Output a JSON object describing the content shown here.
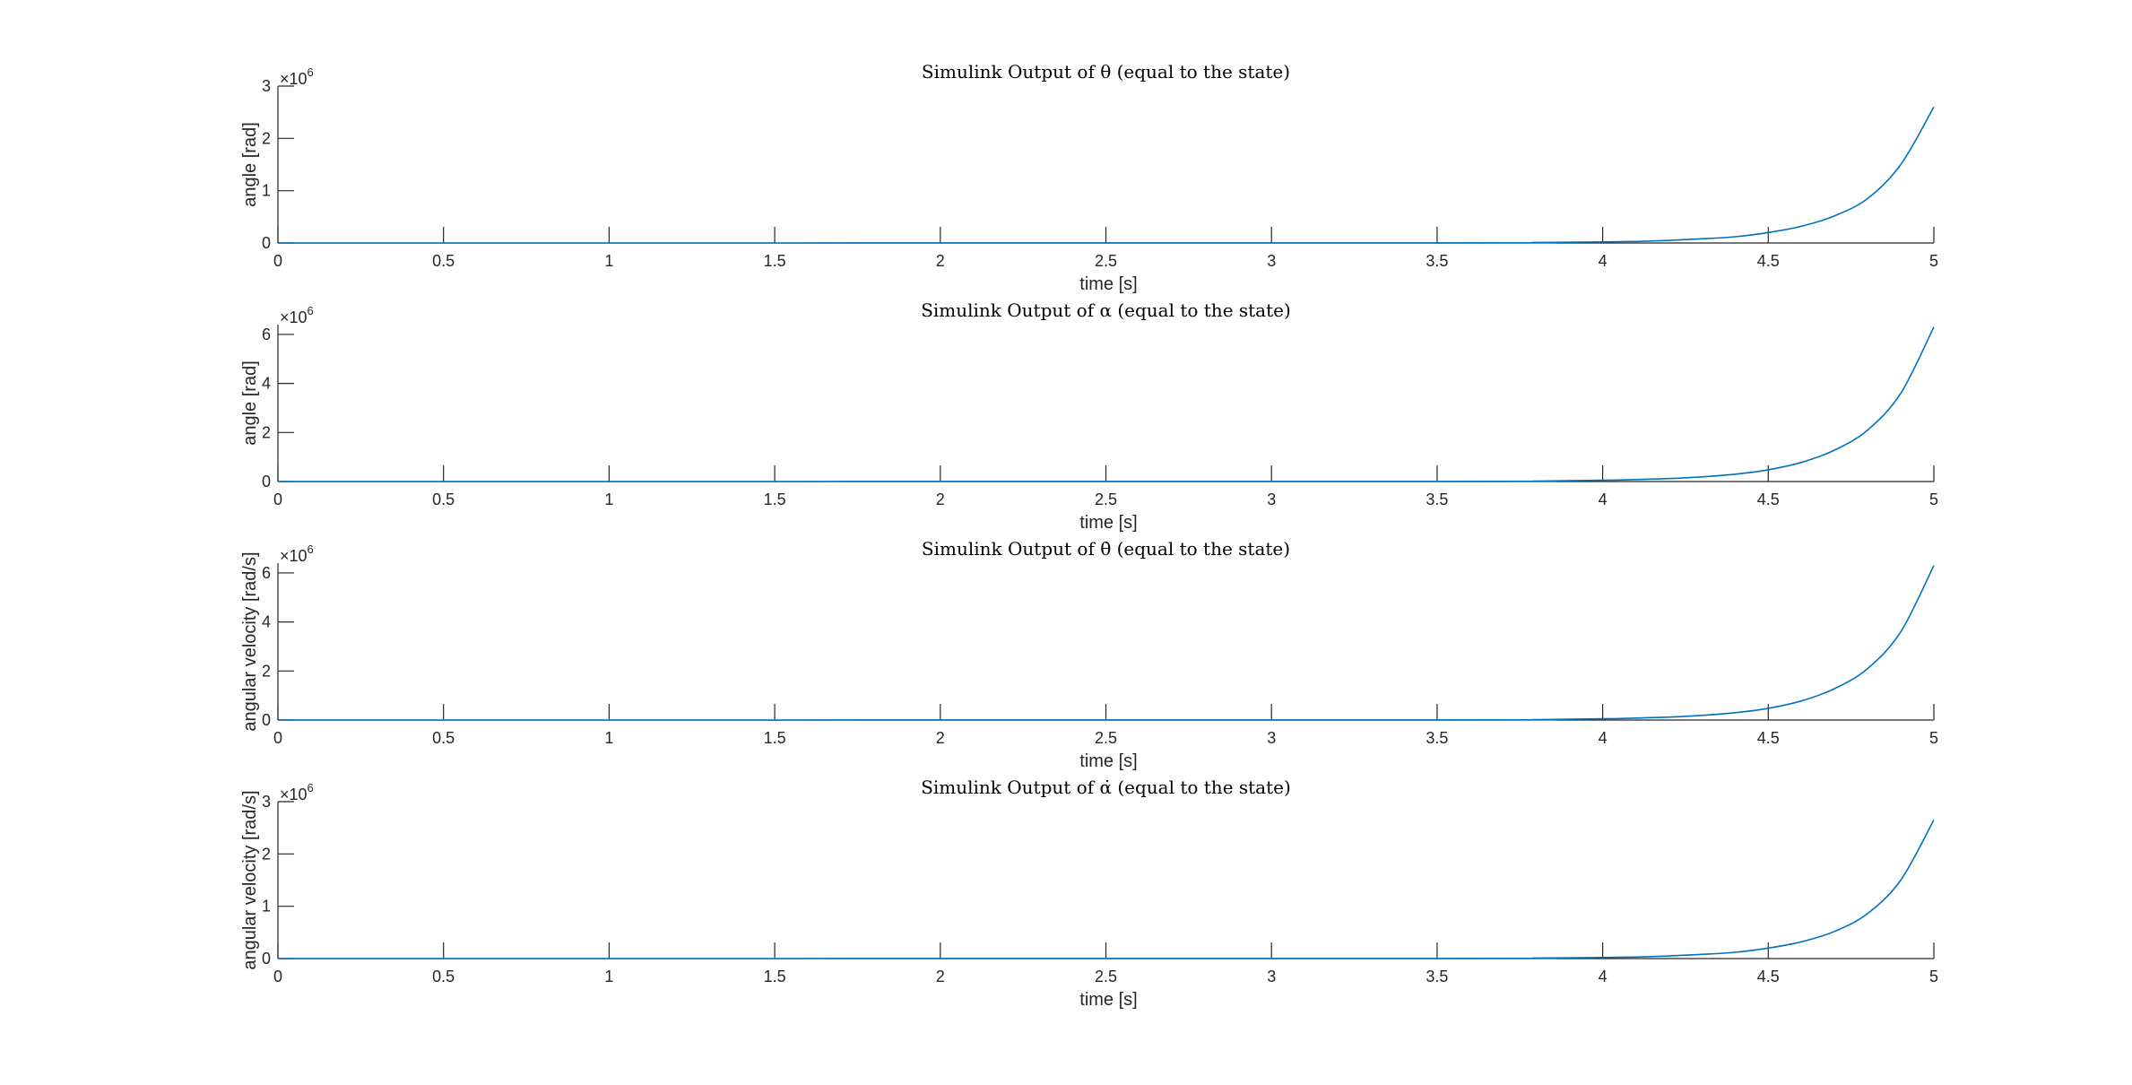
{
  "figure": {
    "background": "#ffffff",
    "line_color": "#0072bd",
    "axis_color": "#262626"
  },
  "chart_data": [
    {
      "type": "line",
      "title": "Simulink Output of θ (equal to the state)",
      "xlabel": "time [s]",
      "ylabel": "angle [rad]",
      "exponent_label": "×10",
      "exponent_power": "6",
      "xlim": [
        0,
        5
      ],
      "ylim": [
        0,
        3
      ],
      "xticks": [
        0,
        0.5,
        1,
        1.5,
        2,
        2.5,
        3,
        3.5,
        4,
        4.5,
        5
      ],
      "xtick_labels": [
        "0",
        "0.5",
        "1",
        "1.5",
        "2",
        "2.5",
        "3",
        "3.5",
        "4",
        "4.5",
        "5"
      ],
      "yticks": [
        0,
        1,
        2,
        3
      ],
      "ytick_labels": [
        "0",
        "1",
        "2",
        "3"
      ],
      "grid": false,
      "series": [
        {
          "x": [
            0,
            3.5,
            3.8,
            4.0,
            4.1,
            4.2,
            4.3,
            4.4,
            4.5,
            4.6,
            4.7,
            4.8,
            4.9,
            5.0
          ],
          "y": [
            0,
            0.002,
            0.01,
            0.02,
            0.03,
            0.05,
            0.08,
            0.12,
            0.2,
            0.32,
            0.52,
            0.85,
            1.5,
            2.6
          ]
        }
      ]
    },
    {
      "type": "line",
      "title": "Simulink Output of α (equal to the state)",
      "xlabel": "time [s]",
      "ylabel": "angle [rad]",
      "exponent_label": "×10",
      "exponent_power": "6",
      "xlim": [
        0,
        5
      ],
      "ylim": [
        0,
        6.4
      ],
      "xticks": [
        0,
        0.5,
        1,
        1.5,
        2,
        2.5,
        3,
        3.5,
        4,
        4.5,
        5
      ],
      "xtick_labels": [
        "0",
        "0.5",
        "1",
        "1.5",
        "2",
        "2.5",
        "3",
        "3.5",
        "4",
        "4.5",
        "5"
      ],
      "yticks": [
        0,
        2,
        4,
        6
      ],
      "ytick_labels": [
        "0",
        "2",
        "4",
        "6"
      ],
      "grid": false,
      "series": [
        {
          "x": [
            0,
            3.5,
            3.8,
            4.0,
            4.1,
            4.2,
            4.3,
            4.4,
            4.5,
            4.6,
            4.7,
            4.8,
            4.9,
            5.0
          ],
          "y": [
            0,
            0.004,
            0.02,
            0.05,
            0.08,
            0.12,
            0.19,
            0.3,
            0.48,
            0.78,
            1.28,
            2.1,
            3.6,
            6.3
          ]
        }
      ]
    },
    {
      "type": "line",
      "title": "Simulink Output of θ̇ (equal to the state)",
      "xlabel": "time [s]",
      "ylabel": "angular velocity [rad/s]",
      "exponent_label": "×10",
      "exponent_power": "6",
      "xlim": [
        0,
        5
      ],
      "ylim": [
        0,
        6.4
      ],
      "xticks": [
        0,
        0.5,
        1,
        1.5,
        2,
        2.5,
        3,
        3.5,
        4,
        4.5,
        5
      ],
      "xtick_labels": [
        "0",
        "0.5",
        "1",
        "1.5",
        "2",
        "2.5",
        "3",
        "3.5",
        "4",
        "4.5",
        "5"
      ],
      "yticks": [
        0,
        2,
        4,
        6
      ],
      "ytick_labels": [
        "0",
        "2",
        "4",
        "6"
      ],
      "grid": false,
      "series": [
        {
          "x": [
            0,
            3.5,
            3.8,
            4.0,
            4.1,
            4.2,
            4.3,
            4.4,
            4.5,
            4.6,
            4.7,
            4.8,
            4.9,
            5.0
          ],
          "y": [
            0,
            0.004,
            0.02,
            0.05,
            0.08,
            0.12,
            0.19,
            0.3,
            0.48,
            0.78,
            1.28,
            2.1,
            3.6,
            6.3
          ]
        }
      ]
    },
    {
      "type": "line",
      "title": "Simulink Output of α̇ (equal to the state)",
      "xlabel": "time [s]",
      "ylabel": "angular velocity [rad/s]",
      "exponent_label": "×10",
      "exponent_power": "6",
      "xlim": [
        0,
        5
      ],
      "ylim": [
        0,
        3
      ],
      "xticks": [
        0,
        0.5,
        1,
        1.5,
        2,
        2.5,
        3,
        3.5,
        4,
        4.5,
        5
      ],
      "xtick_labels": [
        "0",
        "0.5",
        "1",
        "1.5",
        "2",
        "2.5",
        "3",
        "3.5",
        "4",
        "4.5",
        "5"
      ],
      "yticks": [
        0,
        1,
        2,
        3
      ],
      "ytick_labels": [
        "0",
        "1",
        "2",
        "3"
      ],
      "grid": false,
      "series": [
        {
          "x": [
            0,
            3.5,
            3.8,
            4.0,
            4.1,
            4.2,
            4.3,
            4.4,
            4.5,
            4.6,
            4.7,
            4.8,
            4.9,
            5.0
          ],
          "y": [
            0,
            0.002,
            0.01,
            0.02,
            0.03,
            0.05,
            0.08,
            0.12,
            0.2,
            0.32,
            0.52,
            0.86,
            1.5,
            2.65
          ]
        }
      ]
    }
  ]
}
